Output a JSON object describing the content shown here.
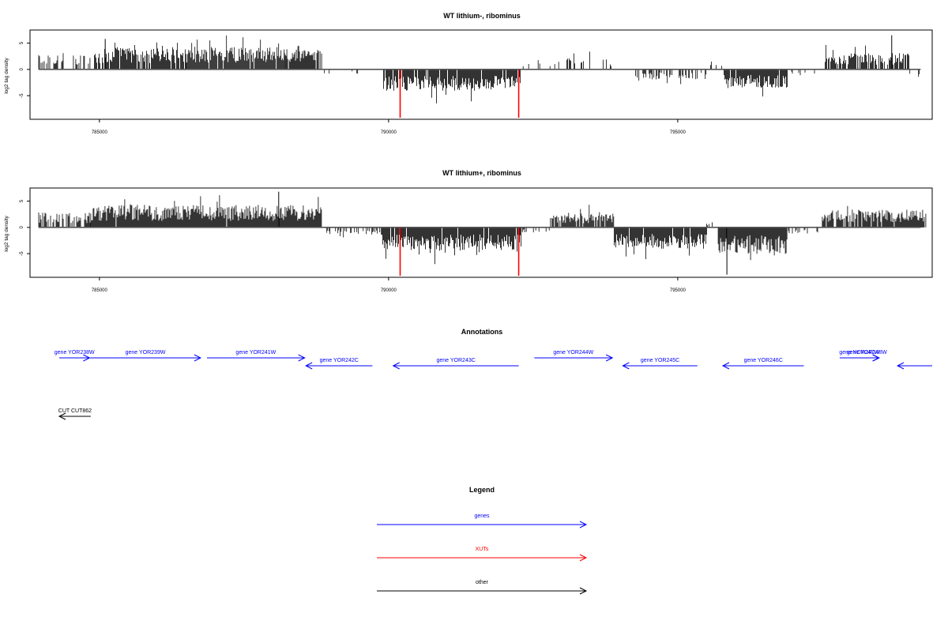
{
  "chart_data": [
    {
      "type": "bar",
      "title": "WT lithium-, ribominus",
      "ylabel": "log2 tag density",
      "xlim": [
        783800,
        799400
      ],
      "ylim": [
        -9.5,
        7.5
      ],
      "xticks": [
        785000,
        790000,
        795000
      ],
      "xtick_labels": [
        "785000",
        "790000",
        "795000"
      ],
      "yticks": [
        -5,
        0,
        5
      ],
      "ytick_labels": [
        "-5",
        "0",
        "5"
      ],
      "regions": [
        {
          "start": 783950,
          "end": 784400,
          "sign": 1,
          "amp": 2.6,
          "density": 0.45
        },
        {
          "start": 784400,
          "end": 784850,
          "sign": 1,
          "amp": 2.2,
          "density": 0.2
        },
        {
          "start": 784900,
          "end": 786500,
          "sign": 1,
          "amp": 3.4,
          "density": 0.9
        },
        {
          "start": 786500,
          "end": 788200,
          "sign": 1,
          "amp": 3.6,
          "density": 0.95
        },
        {
          "start": 788200,
          "end": 788850,
          "sign": 1,
          "amp": 3.2,
          "density": 0.85
        },
        {
          "start": 788850,
          "end": 789600,
          "sign": -1,
          "amp": 1.0,
          "density": 0.1
        },
        {
          "start": 789900,
          "end": 792300,
          "sign": -1,
          "amp": 3.4,
          "density": 0.9
        },
        {
          "start": 792300,
          "end": 793000,
          "sign": 1,
          "amp": 1.6,
          "density": 0.1
        },
        {
          "start": 793000,
          "end": 793900,
          "sign": 1,
          "amp": 1.8,
          "density": 0.25
        },
        {
          "start": 793900,
          "end": 794300,
          "sign": -1,
          "amp": 1.2,
          "density": 0.1
        },
        {
          "start": 794300,
          "end": 795500,
          "sign": -1,
          "amp": 1.6,
          "density": 0.55
        },
        {
          "start": 795500,
          "end": 795800,
          "sign": 1,
          "amp": 1.0,
          "density": 0.15
        },
        {
          "start": 795800,
          "end": 796900,
          "sign": -1,
          "amp": 3.0,
          "density": 0.95
        },
        {
          "start": 796900,
          "end": 797400,
          "sign": -1,
          "amp": 1.0,
          "density": 0.1
        },
        {
          "start": 797550,
          "end": 799000,
          "sign": 1,
          "amp": 2.6,
          "density": 0.75
        },
        {
          "start": 799000,
          "end": 799200,
          "sign": -1,
          "amp": 1.2,
          "density": 0.2
        }
      ],
      "spikes": [
        {
          "x": 790200,
          "y": -9.2,
          "color": "#ff0000"
        },
        {
          "x": 792250,
          "y": -9.2,
          "color": "#ff0000"
        },
        {
          "x": 798700,
          "y": 6.5,
          "color": "#000000"
        },
        {
          "x": 785100,
          "y": 5.8,
          "color": "#000000"
        }
      ]
    },
    {
      "type": "bar",
      "title": "WT lithium+, ribominus",
      "ylabel": "log2 tag density",
      "xlim": [
        783800,
        799400
      ],
      "ylim": [
        -9.5,
        7.5
      ],
      "xticks": [
        785000,
        790000,
        795000
      ],
      "xtick_labels": [
        "785000",
        "790000",
        "795000"
      ],
      "yticks": [
        -5,
        0,
        5
      ],
      "ytick_labels": [
        "-5",
        "0",
        "5"
      ],
      "regions": [
        {
          "start": 783950,
          "end": 784850,
          "sign": 1,
          "amp": 2.4,
          "density": 0.75
        },
        {
          "start": 784850,
          "end": 788850,
          "sign": 1,
          "amp": 3.6,
          "density": 0.98
        },
        {
          "start": 788850,
          "end": 789900,
          "sign": -1,
          "amp": 1.2,
          "density": 0.35
        },
        {
          "start": 789900,
          "end": 792300,
          "sign": -1,
          "amp": 3.6,
          "density": 0.95
        },
        {
          "start": 792300,
          "end": 792800,
          "sign": -1,
          "amp": 0.8,
          "density": 0.2
        },
        {
          "start": 792800,
          "end": 793900,
          "sign": 1,
          "amp": 2.2,
          "density": 0.85
        },
        {
          "start": 793900,
          "end": 795500,
          "sign": -1,
          "amp": 3.4,
          "density": 0.97
        },
        {
          "start": 795500,
          "end": 795700,
          "sign": 1,
          "amp": 1.0,
          "density": 0.3
        },
        {
          "start": 795700,
          "end": 796900,
          "sign": -1,
          "amp": 4.2,
          "density": 1.0
        },
        {
          "start": 796900,
          "end": 797500,
          "sign": -1,
          "amp": 1.0,
          "density": 0.35
        },
        {
          "start": 797500,
          "end": 799300,
          "sign": 1,
          "amp": 2.8,
          "density": 0.9
        }
      ],
      "spikes": [
        {
          "x": 790200,
          "y": -9.2,
          "color": "#ff0000"
        },
        {
          "x": 792250,
          "y": -9.2,
          "color": "#ff0000"
        },
        {
          "x": 788100,
          "y": 6.8,
          "color": "#000000"
        },
        {
          "x": 795850,
          "y": -9.0,
          "color": "#000000"
        }
      ]
    }
  ],
  "annotations": {
    "title": "Annotations",
    "xlim": [
      783800,
      799400
    ],
    "genes": [
      {
        "label": "gene YOR238W",
        "start": 783900,
        "end": 784830,
        "strand": "+",
        "row": 0
      },
      {
        "label": "gene YOR239W",
        "start": 784840,
        "end": 786750,
        "strand": "+",
        "row": 0
      },
      {
        "label": "gene YOR241W",
        "start": 786860,
        "end": 788550,
        "strand": "+",
        "row": 0
      },
      {
        "label": "gene YOR242C",
        "start": 788570,
        "end": 789720,
        "strand": "-",
        "row": 1
      },
      {
        "label": "gene YOR243C",
        "start": 790080,
        "end": 792250,
        "strand": "-",
        "row": 1
      },
      {
        "label": "gene YOR244W",
        "start": 792520,
        "end": 793870,
        "strand": "+",
        "row": 0
      },
      {
        "label": "gene YOR245C",
        "start": 794050,
        "end": 795340,
        "strand": "-",
        "row": 1
      },
      {
        "label": "gene YOR246C",
        "start": 795780,
        "end": 797180,
        "strand": "-",
        "row": 1
      },
      {
        "label": "gene YOR247W",
        "start": 797800,
        "end": 798480,
        "strand": "+",
        "row": 0
      },
      {
        "label": "gene YOR248W",
        "start": 798060,
        "end": 798480,
        "strand": "+",
        "row": 0
      },
      {
        "label": "",
        "start": 798800,
        "end": 799400,
        "strand": "-",
        "row": 1
      }
    ],
    "other": [
      {
        "label": "CUT CUT862",
        "start": 784200,
        "end": 784850,
        "strand": "-",
        "row": 2
      }
    ]
  },
  "legend": {
    "title": "Legend",
    "items": [
      {
        "label": "genes",
        "color": "#0000ff"
      },
      {
        "label": "XUTs",
        "color": "#ff0000"
      },
      {
        "label": "other",
        "color": "#000000"
      }
    ]
  },
  "colors": {
    "gene": "#0000ff",
    "xut": "#ff0000",
    "other": "#000000",
    "signal": "#000000",
    "highlight": "#ff0000"
  }
}
